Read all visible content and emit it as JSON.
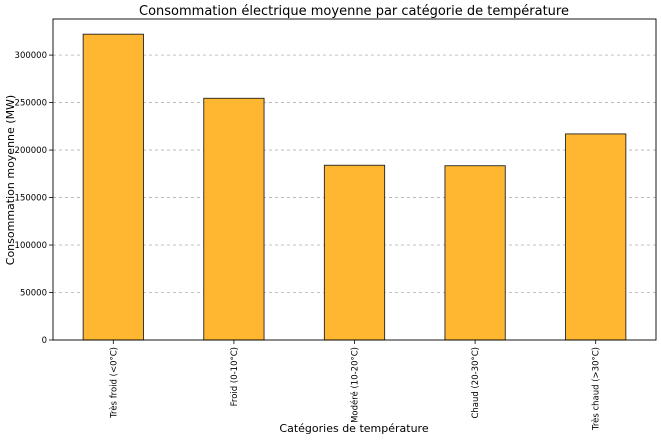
{
  "chart_data": {
    "type": "bar",
    "title": "Consommation électrique moyenne par catégorie de température",
    "xlabel": "Catégories de température",
    "ylabel": "Consommation moyenne (MW)",
    "categories": [
      "Très froid (<0°C)",
      "Froid (0-10°C)",
      "Modéré (10-20°C)",
      "Chaud (20-30°C)",
      "Très chaud (>30°C)"
    ],
    "values": [
      322000,
      254500,
      184000,
      183500,
      217000
    ],
    "ylim": [
      0,
      338000
    ],
    "yticks": [
      0,
      50000,
      100000,
      150000,
      200000,
      250000,
      300000
    ],
    "bar_color": "#ffb732",
    "grid": true,
    "grid_axis": "y"
  }
}
